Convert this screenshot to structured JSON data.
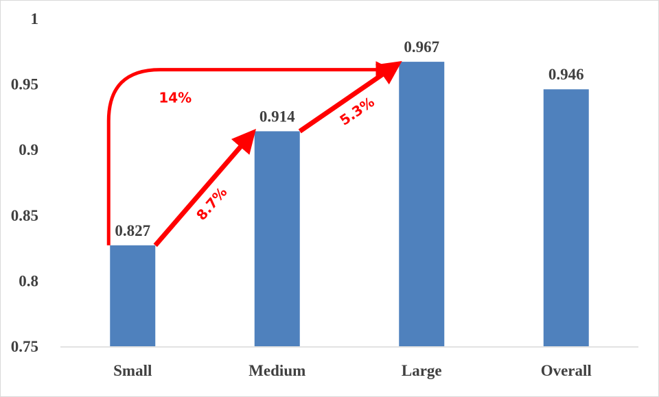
{
  "chart_data": {
    "type": "bar",
    "categories": [
      "Small",
      "Medium",
      "Large",
      "Overall"
    ],
    "values": [
      0.827,
      0.914,
      0.967,
      0.946
    ],
    "data_labels": [
      "0.827",
      "0.914",
      "0.967",
      "0.946"
    ],
    "ylim": [
      0.75,
      1.0
    ],
    "yticks": [
      0.75,
      0.8,
      0.85,
      0.9,
      0.95,
      1.0
    ],
    "ytick_labels": [
      "0.75",
      "0.8",
      "0.85",
      "0.9",
      "0.95",
      "1"
    ],
    "title": "",
    "xlabel": "",
    "ylabel": "",
    "grid": false,
    "legend": "none",
    "bar_color": "#4f81bd",
    "annotations": [
      {
        "text": "8.7%",
        "from": "Small",
        "to": "Medium"
      },
      {
        "text": "5.3%",
        "from": "Medium",
        "to": "Large"
      },
      {
        "text": "14%",
        "from": "Small",
        "to": "Large"
      }
    ],
    "annotation_color": "#ff0000"
  }
}
